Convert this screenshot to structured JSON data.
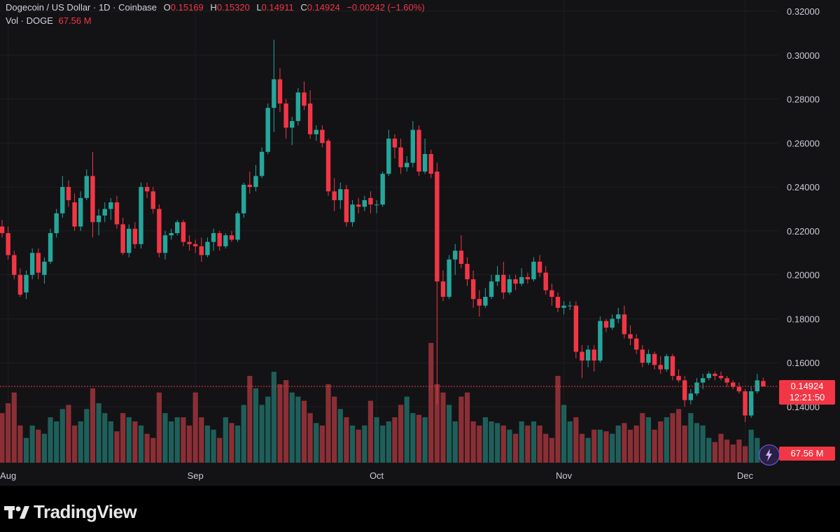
{
  "header": {
    "symbol": "Dogecoin / US Dollar · 1D · Coinbase",
    "o_label": "O",
    "o_value": "0.15169",
    "h_label": "H",
    "h_value": "0.15320",
    "l_label": "L",
    "l_value": "0.14911",
    "c_label": "C",
    "c_value": "0.14924",
    "change": "−0.00242 (−1.60%)",
    "vol_label": "Vol · DOGE",
    "vol_value": "67.56 M"
  },
  "price_tag": {
    "price": "0.14924",
    "countdown": "12:21:50"
  },
  "volume_tag": "67.56 M",
  "brand": {
    "name": "TradingView"
  },
  "colors": {
    "up": "#26a69a",
    "down": "#f23645",
    "background": "#131316",
    "grid": "#1e1e22"
  },
  "chart_data": {
    "type": "candlestick",
    "title": "Dogecoin / US Dollar · 1D · Coinbase",
    "y_axis_ticks": [
      "0.32000",
      "0.30000",
      "0.28000",
      "0.26000",
      "0.24000",
      "0.22000",
      "0.20000",
      "0.18000",
      "0.16000",
      "0.14000"
    ],
    "ylim": [
      0.14,
      0.32
    ],
    "x_axis_labels": [
      "Aug",
      "Sep",
      "Oct",
      "Nov",
      "Dec"
    ],
    "last_close": 0.14924,
    "series": [
      {
        "date": "Jul 31",
        "o": 0.222,
        "h": 0.225,
        "l": 0.217,
        "c": 0.219
      },
      {
        "date": "Aug 1",
        "o": 0.219,
        "h": 0.222,
        "l": 0.207,
        "c": 0.209
      },
      {
        "date": "Aug 2",
        "o": 0.209,
        "h": 0.211,
        "l": 0.198,
        "c": 0.2
      },
      {
        "date": "Aug 3",
        "o": 0.2,
        "h": 0.203,
        "l": 0.19,
        "c": 0.191
      },
      {
        "date": "Aug 4",
        "o": 0.192,
        "h": 0.202,
        "l": 0.189,
        "c": 0.2
      },
      {
        "date": "Aug 5",
        "o": 0.2,
        "h": 0.212,
        "l": 0.198,
        "c": 0.21
      },
      {
        "date": "Aug 6",
        "o": 0.21,
        "h": 0.212,
        "l": 0.198,
        "c": 0.201
      },
      {
        "date": "Aug 7",
        "o": 0.2,
        "h": 0.208,
        "l": 0.196,
        "c": 0.206
      },
      {
        "date": "Aug 8",
        "o": 0.206,
        "h": 0.221,
        "l": 0.205,
        "c": 0.219
      },
      {
        "date": "Aug 9",
        "o": 0.219,
        "h": 0.23,
        "l": 0.217,
        "c": 0.228
      },
      {
        "date": "Aug 10",
        "o": 0.228,
        "h": 0.245,
        "l": 0.226,
        "c": 0.24
      },
      {
        "date": "Aug 11",
        "o": 0.24,
        "h": 0.243,
        "l": 0.231,
        "c": 0.234
      },
      {
        "date": "Aug 12",
        "o": 0.233,
        "h": 0.237,
        "l": 0.22,
        "c": 0.222
      },
      {
        "date": "Aug 13",
        "o": 0.222,
        "h": 0.238,
        "l": 0.22,
        "c": 0.235
      },
      {
        "date": "Aug 14",
        "o": 0.235,
        "h": 0.248,
        "l": 0.234,
        "c": 0.245
      },
      {
        "date": "Aug 15",
        "o": 0.245,
        "h": 0.256,
        "l": 0.217,
        "c": 0.224
      },
      {
        "date": "Aug 16",
        "o": 0.224,
        "h": 0.23,
        "l": 0.218,
        "c": 0.227
      },
      {
        "date": "Aug 17",
        "o": 0.227,
        "h": 0.233,
        "l": 0.224,
        "c": 0.23
      },
      {
        "date": "Aug 18",
        "o": 0.23,
        "h": 0.235,
        "l": 0.225,
        "c": 0.233
      },
      {
        "date": "Aug 19",
        "o": 0.233,
        "h": 0.236,
        "l": 0.221,
        "c": 0.223
      },
      {
        "date": "Aug 20",
        "o": 0.223,
        "h": 0.226,
        "l": 0.209,
        "c": 0.21
      },
      {
        "date": "Aug 21",
        "o": 0.21,
        "h": 0.223,
        "l": 0.208,
        "c": 0.221
      },
      {
        "date": "Aug 22",
        "o": 0.221,
        "h": 0.224,
        "l": 0.212,
        "c": 0.214
      },
      {
        "date": "Aug 23",
        "o": 0.214,
        "h": 0.242,
        "l": 0.212,
        "c": 0.24
      },
      {
        "date": "Aug 24",
        "o": 0.24,
        "h": 0.242,
        "l": 0.235,
        "c": 0.238
      },
      {
        "date": "Aug 25",
        "o": 0.238,
        "h": 0.24,
        "l": 0.228,
        "c": 0.23
      },
      {
        "date": "Aug 26",
        "o": 0.23,
        "h": 0.232,
        "l": 0.208,
        "c": 0.21
      },
      {
        "date": "Aug 27",
        "o": 0.21,
        "h": 0.22,
        "l": 0.207,
        "c": 0.218
      },
      {
        "date": "Aug 28",
        "o": 0.218,
        "h": 0.221,
        "l": 0.216,
        "c": 0.219
      },
      {
        "date": "Aug 29",
        "o": 0.219,
        "h": 0.225,
        "l": 0.218,
        "c": 0.224
      },
      {
        "date": "Aug 30",
        "o": 0.224,
        "h": 0.225,
        "l": 0.213,
        "c": 0.215
      },
      {
        "date": "Aug 31",
        "o": 0.215,
        "h": 0.218,
        "l": 0.211,
        "c": 0.214
      },
      {
        "date": "Sep 1",
        "o": 0.214,
        "h": 0.216,
        "l": 0.21,
        "c": 0.213
      },
      {
        "date": "Sep 2",
        "o": 0.213,
        "h": 0.217,
        "l": 0.206,
        "c": 0.209
      },
      {
        "date": "Sep 3",
        "o": 0.209,
        "h": 0.217,
        "l": 0.208,
        "c": 0.215
      },
      {
        "date": "Sep 4",
        "o": 0.215,
        "h": 0.221,
        "l": 0.211,
        "c": 0.219
      },
      {
        "date": "Sep 5",
        "o": 0.219,
        "h": 0.22,
        "l": 0.211,
        "c": 0.213
      },
      {
        "date": "Sep 6",
        "o": 0.213,
        "h": 0.219,
        "l": 0.212,
        "c": 0.218
      },
      {
        "date": "Sep 7",
        "o": 0.218,
        "h": 0.22,
        "l": 0.215,
        "c": 0.216
      },
      {
        "date": "Sep 8",
        "o": 0.216,
        "h": 0.229,
        "l": 0.215,
        "c": 0.228
      },
      {
        "date": "Sep 9",
        "o": 0.228,
        "h": 0.242,
        "l": 0.226,
        "c": 0.241
      },
      {
        "date": "Sep 10",
        "o": 0.241,
        "h": 0.247,
        "l": 0.237,
        "c": 0.24
      },
      {
        "date": "Sep 11",
        "o": 0.24,
        "h": 0.25,
        "l": 0.238,
        "c": 0.245
      },
      {
        "date": "Sep 12",
        "o": 0.245,
        "h": 0.258,
        "l": 0.244,
        "c": 0.256
      },
      {
        "date": "Sep 13",
        "o": 0.256,
        "h": 0.278,
        "l": 0.255,
        "c": 0.276
      },
      {
        "date": "Sep 14",
        "o": 0.276,
        "h": 0.307,
        "l": 0.265,
        "c": 0.289
      },
      {
        "date": "Sep 15",
        "o": 0.289,
        "h": 0.294,
        "l": 0.274,
        "c": 0.278
      },
      {
        "date": "Sep 16",
        "o": 0.278,
        "h": 0.28,
        "l": 0.262,
        "c": 0.267
      },
      {
        "date": "Sep 17",
        "o": 0.267,
        "h": 0.272,
        "l": 0.259,
        "c": 0.27
      },
      {
        "date": "Sep 18",
        "o": 0.27,
        "h": 0.285,
        "l": 0.268,
        "c": 0.283
      },
      {
        "date": "Sep 19",
        "o": 0.283,
        "h": 0.288,
        "l": 0.275,
        "c": 0.277
      },
      {
        "date": "Sep 20",
        "o": 0.278,
        "h": 0.284,
        "l": 0.262,
        "c": 0.264
      },
      {
        "date": "Sep 21",
        "o": 0.264,
        "h": 0.268,
        "l": 0.261,
        "c": 0.266
      },
      {
        "date": "Sep 22",
        "o": 0.266,
        "h": 0.268,
        "l": 0.258,
        "c": 0.26
      },
      {
        "date": "Sep 23",
        "o": 0.261,
        "h": 0.262,
        "l": 0.236,
        "c": 0.238
      },
      {
        "date": "Sep 24",
        "o": 0.238,
        "h": 0.244,
        "l": 0.229,
        "c": 0.234
      },
      {
        "date": "Sep 25",
        "o": 0.234,
        "h": 0.242,
        "l": 0.23,
        "c": 0.239
      },
      {
        "date": "Sep 26",
        "o": 0.239,
        "h": 0.241,
        "l": 0.222,
        "c": 0.224
      },
      {
        "date": "Sep 27",
        "o": 0.224,
        "h": 0.234,
        "l": 0.222,
        "c": 0.232
      },
      {
        "date": "Sep 28",
        "o": 0.232,
        "h": 0.235,
        "l": 0.228,
        "c": 0.231
      },
      {
        "date": "Sep 29",
        "o": 0.231,
        "h": 0.236,
        "l": 0.229,
        "c": 0.234
      },
      {
        "date": "Sep 30",
        "o": 0.235,
        "h": 0.238,
        "l": 0.228,
        "c": 0.232
      },
      {
        "date": "Oct 1",
        "o": 0.232,
        "h": 0.234,
        "l": 0.228,
        "c": 0.232
      },
      {
        "date": "Oct 2",
        "o": 0.232,
        "h": 0.247,
        "l": 0.231,
        "c": 0.246
      },
      {
        "date": "Oct 3",
        "o": 0.246,
        "h": 0.266,
        "l": 0.245,
        "c": 0.262
      },
      {
        "date": "Oct 4",
        "o": 0.262,
        "h": 0.264,
        "l": 0.253,
        "c": 0.258
      },
      {
        "date": "Oct 5",
        "o": 0.258,
        "h": 0.262,
        "l": 0.246,
        "c": 0.249
      },
      {
        "date": "Oct 6",
        "o": 0.249,
        "h": 0.254,
        "l": 0.247,
        "c": 0.251
      },
      {
        "date": "Oct 7",
        "o": 0.251,
        "h": 0.27,
        "l": 0.249,
        "c": 0.266
      },
      {
        "date": "Oct 8",
        "o": 0.266,
        "h": 0.268,
        "l": 0.245,
        "c": 0.247
      },
      {
        "date": "Oct 9",
        "o": 0.247,
        "h": 0.262,
        "l": 0.246,
        "c": 0.255
      },
      {
        "date": "Oct 10",
        "o": 0.255,
        "h": 0.257,
        "l": 0.244,
        "c": 0.246
      },
      {
        "date": "Oct 11",
        "o": 0.247,
        "h": 0.251,
        "l": 0.141,
        "c": 0.197
      },
      {
        "date": "Oct 12",
        "o": 0.197,
        "h": 0.202,
        "l": 0.188,
        "c": 0.19
      },
      {
        "date": "Oct 13",
        "o": 0.19,
        "h": 0.209,
        "l": 0.189,
        "c": 0.207
      },
      {
        "date": "Oct 14",
        "o": 0.207,
        "h": 0.214,
        "l": 0.2,
        "c": 0.211
      },
      {
        "date": "Oct 15",
        "o": 0.211,
        "h": 0.218,
        "l": 0.203,
        "c": 0.205
      },
      {
        "date": "Oct 16",
        "o": 0.205,
        "h": 0.208,
        "l": 0.195,
        "c": 0.198
      },
      {
        "date": "Oct 17",
        "o": 0.198,
        "h": 0.202,
        "l": 0.185,
        "c": 0.189
      },
      {
        "date": "Oct 18",
        "o": 0.189,
        "h": 0.193,
        "l": 0.181,
        "c": 0.186
      },
      {
        "date": "Oct 19",
        "o": 0.186,
        "h": 0.194,
        "l": 0.185,
        "c": 0.19
      },
      {
        "date": "Oct 20",
        "o": 0.19,
        "h": 0.2,
        "l": 0.189,
        "c": 0.197
      },
      {
        "date": "Oct 21",
        "o": 0.197,
        "h": 0.204,
        "l": 0.195,
        "c": 0.2
      },
      {
        "date": "Oct 22",
        "o": 0.2,
        "h": 0.206,
        "l": 0.189,
        "c": 0.192
      },
      {
        "date": "Oct 23",
        "o": 0.192,
        "h": 0.2,
        "l": 0.191,
        "c": 0.198
      },
      {
        "date": "Oct 24",
        "o": 0.198,
        "h": 0.2,
        "l": 0.193,
        "c": 0.196
      },
      {
        "date": "Oct 25",
        "o": 0.196,
        "h": 0.203,
        "l": 0.195,
        "c": 0.199
      },
      {
        "date": "Oct 26",
        "o": 0.199,
        "h": 0.201,
        "l": 0.196,
        "c": 0.198
      },
      {
        "date": "Oct 27",
        "o": 0.198,
        "h": 0.208,
        "l": 0.197,
        "c": 0.206
      },
      {
        "date": "Oct 28",
        "o": 0.206,
        "h": 0.209,
        "l": 0.199,
        "c": 0.201
      },
      {
        "date": "Oct 29",
        "o": 0.201,
        "h": 0.204,
        "l": 0.191,
        "c": 0.193
      },
      {
        "date": "Oct 30",
        "o": 0.193,
        "h": 0.196,
        "l": 0.186,
        "c": 0.19
      },
      {
        "date": "Oct 31",
        "o": 0.19,
        "h": 0.192,
        "l": 0.183,
        "c": 0.185
      },
      {
        "date": "Nov 1",
        "o": 0.185,
        "h": 0.188,
        "l": 0.182,
        "c": 0.186
      },
      {
        "date": "Nov 2",
        "o": 0.186,
        "h": 0.188,
        "l": 0.184,
        "c": 0.186
      },
      {
        "date": "Nov 3",
        "o": 0.186,
        "h": 0.188,
        "l": 0.162,
        "c": 0.165
      },
      {
        "date": "Nov 4",
        "o": 0.165,
        "h": 0.168,
        "l": 0.153,
        "c": 0.161
      },
      {
        "date": "Nov 5",
        "o": 0.161,
        "h": 0.168,
        "l": 0.158,
        "c": 0.166
      },
      {
        "date": "Nov 6",
        "o": 0.166,
        "h": 0.168,
        "l": 0.156,
        "c": 0.161
      },
      {
        "date": "Nov 7",
        "o": 0.161,
        "h": 0.181,
        "l": 0.16,
        "c": 0.179
      },
      {
        "date": "Nov 8",
        "o": 0.179,
        "h": 0.18,
        "l": 0.174,
        "c": 0.176
      },
      {
        "date": "Nov 9",
        "o": 0.176,
        "h": 0.182,
        "l": 0.175,
        "c": 0.18
      },
      {
        "date": "Nov 10",
        "o": 0.18,
        "h": 0.185,
        "l": 0.178,
        "c": 0.182
      },
      {
        "date": "Nov 11",
        "o": 0.182,
        "h": 0.186,
        "l": 0.171,
        "c": 0.173
      },
      {
        "date": "Nov 12",
        "o": 0.173,
        "h": 0.177,
        "l": 0.168,
        "c": 0.171
      },
      {
        "date": "Nov 13",
        "o": 0.171,
        "h": 0.173,
        "l": 0.164,
        "c": 0.166
      },
      {
        "date": "Nov 14",
        "o": 0.166,
        "h": 0.168,
        "l": 0.158,
        "c": 0.16
      },
      {
        "date": "Nov 15",
        "o": 0.16,
        "h": 0.166,
        "l": 0.159,
        "c": 0.164
      },
      {
        "date": "Nov 16",
        "o": 0.164,
        "h": 0.165,
        "l": 0.157,
        "c": 0.159
      },
      {
        "date": "Nov 17",
        "o": 0.159,
        "h": 0.163,
        "l": 0.155,
        "c": 0.157
      },
      {
        "date": "Nov 18",
        "o": 0.157,
        "h": 0.164,
        "l": 0.156,
        "c": 0.163
      },
      {
        "date": "Nov 19",
        "o": 0.163,
        "h": 0.164,
        "l": 0.152,
        "c": 0.154
      },
      {
        "date": "Nov 20",
        "o": 0.154,
        "h": 0.157,
        "l": 0.151,
        "c": 0.152
      },
      {
        "date": "Nov 21",
        "o": 0.152,
        "h": 0.154,
        "l": 0.14,
        "c": 0.143
      },
      {
        "date": "Nov 22",
        "o": 0.143,
        "h": 0.148,
        "l": 0.141,
        "c": 0.146
      },
      {
        "date": "Nov 23",
        "o": 0.146,
        "h": 0.153,
        "l": 0.145,
        "c": 0.151
      },
      {
        "date": "Nov 24",
        "o": 0.151,
        "h": 0.155,
        "l": 0.148,
        "c": 0.153
      },
      {
        "date": "Nov 25",
        "o": 0.153,
        "h": 0.156,
        "l": 0.152,
        "c": 0.155
      },
      {
        "date": "Nov 26",
        "o": 0.155,
        "h": 0.156,
        "l": 0.152,
        "c": 0.154
      },
      {
        "date": "Nov 27",
        "o": 0.154,
        "h": 0.156,
        "l": 0.152,
        "c": 0.153
      },
      {
        "date": "Nov 28",
        "o": 0.153,
        "h": 0.154,
        "l": 0.149,
        "c": 0.151
      },
      {
        "date": "Nov 29",
        "o": 0.151,
        "h": 0.152,
        "l": 0.148,
        "c": 0.149
      },
      {
        "date": "Nov 30",
        "o": 0.149,
        "h": 0.151,
        "l": 0.146,
        "c": 0.147
      },
      {
        "date": "Dec 1",
        "o": 0.147,
        "h": 0.148,
        "l": 0.133,
        "c": 0.136
      },
      {
        "date": "Dec 2",
        "o": 0.136,
        "h": 0.149,
        "l": 0.135,
        "c": 0.147
      },
      {
        "date": "Dec 3",
        "o": 0.147,
        "h": 0.155,
        "l": 0.146,
        "c": 0.152
      },
      {
        "date": "Dec 4",
        "o": 0.15169,
        "h": 0.1532,
        "l": 0.14911,
        "c": 0.14924
      }
    ],
    "volume_rel": [
      0.6,
      0.72,
      0.85,
      0.45,
      0.3,
      0.45,
      0.4,
      0.35,
      0.55,
      0.5,
      0.65,
      0.7,
      0.45,
      0.5,
      0.65,
      0.9,
      0.72,
      0.6,
      0.5,
      0.38,
      0.6,
      0.55,
      0.5,
      0.45,
      0.35,
      0.3,
      0.85,
      0.6,
      0.5,
      0.55,
      0.55,
      0.45,
      0.85,
      0.55,
      0.45,
      0.4,
      0.3,
      0.55,
      0.48,
      0.45,
      0.7,
      1.05,
      0.9,
      0.7,
      0.8,
      1.1,
      0.95,
      1.0,
      0.85,
      0.8,
      0.75,
      0.6,
      0.48,
      0.45,
      0.95,
      0.8,
      0.65,
      0.55,
      0.45,
      0.4,
      0.45,
      0.75,
      0.55,
      0.45,
      0.5,
      0.55,
      0.7,
      0.8,
      0.6,
      0.58,
      0.55,
      1.45,
      0.95,
      0.85,
      0.7,
      0.5,
      0.8,
      0.85,
      0.5,
      0.45,
      0.55,
      0.5,
      0.48,
      0.45,
      0.4,
      0.35,
      0.5,
      0.45,
      0.5,
      0.45,
      0.35,
      0.3,
      1.05,
      0.7,
      0.5,
      0.55,
      0.35,
      0.3,
      0.4,
      0.4,
      0.38,
      0.35,
      0.45,
      0.48,
      0.4,
      0.45,
      0.6,
      0.55,
      0.4,
      0.5,
      0.55,
      0.6,
      0.65,
      0.45,
      0.6,
      0.48,
      0.45,
      0.3,
      0.25,
      0.35,
      0.28,
      0.22,
      0.28,
      0.2,
      0.4,
      0.3,
      0.15
    ]
  }
}
